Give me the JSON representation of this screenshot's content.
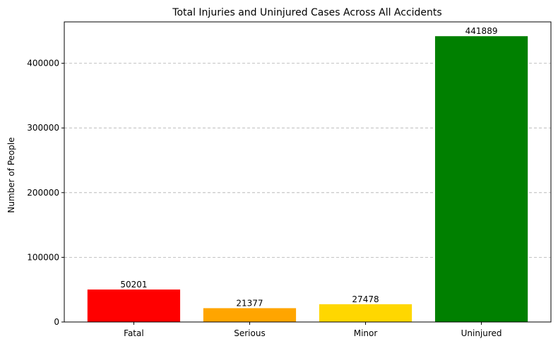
{
  "chart_data": {
    "type": "bar",
    "title": "Total Injuries and Uninjured Cases Across All Accidents",
    "xlabel": "",
    "ylabel": "Number of People",
    "categories": [
      "Fatal",
      "Serious",
      "Minor",
      "Uninjured"
    ],
    "values": [
      50201,
      21377,
      27478,
      441889
    ],
    "data_labels": [
      "50201",
      "21377",
      "27478",
      "441889"
    ],
    "colors": [
      "#ff0000",
      "#ffa500",
      "#ffd700",
      "#008000"
    ],
    "ylim": [
      0,
      463983
    ],
    "yticks": [
      0,
      100000,
      200000,
      300000,
      400000
    ],
    "ytick_labels": [
      "0",
      "100000",
      "200000",
      "300000",
      "400000"
    ],
    "grid": {
      "axis": "y",
      "style": "dashed"
    },
    "legend": "none"
  }
}
